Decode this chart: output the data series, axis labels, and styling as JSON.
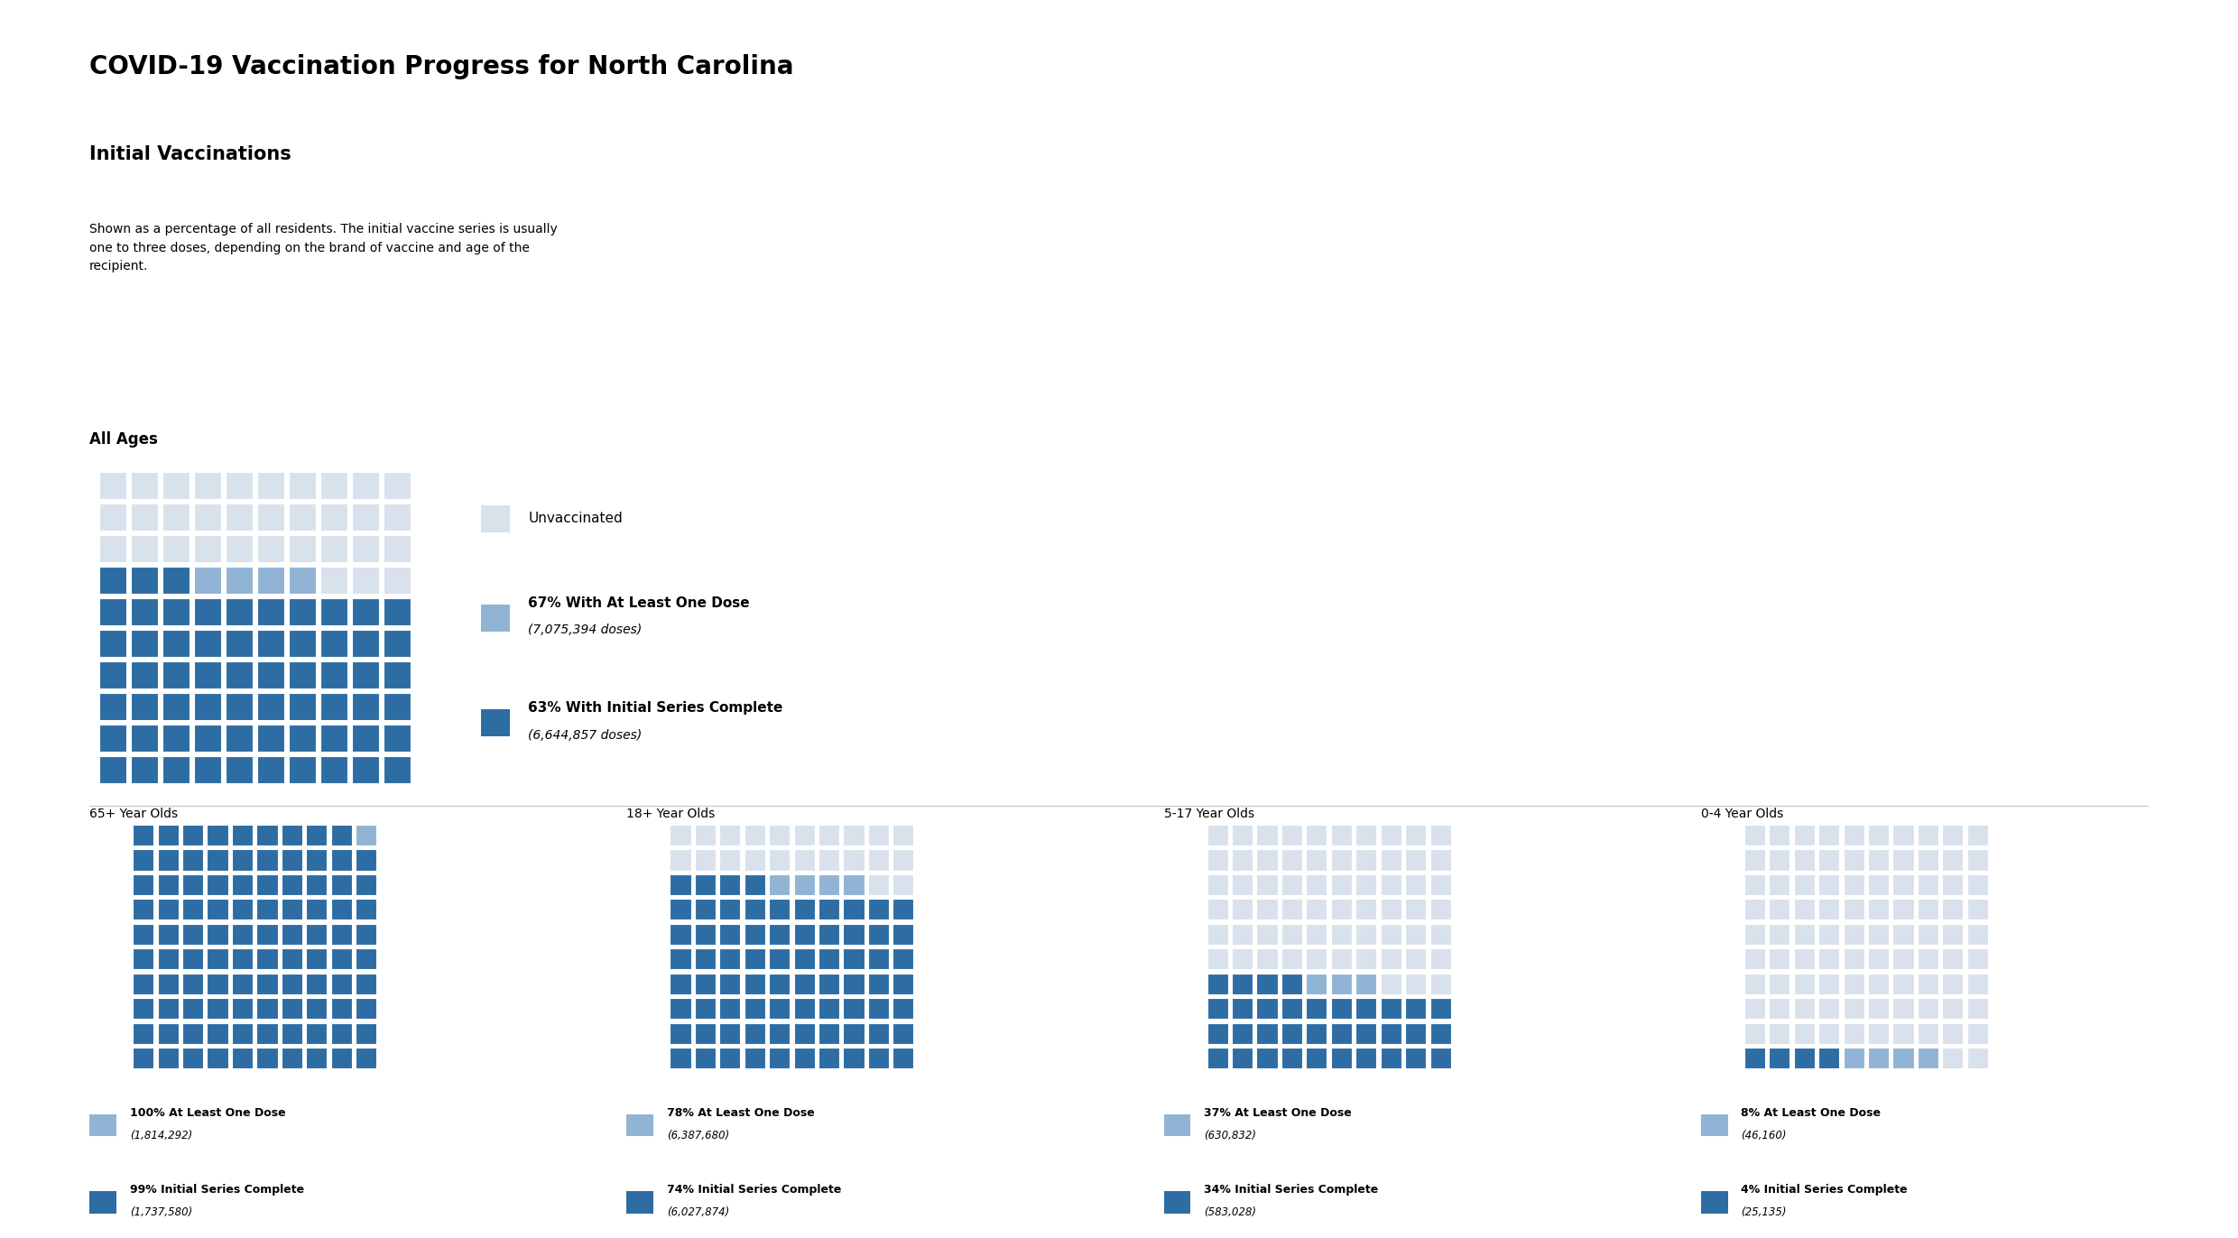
{
  "title": "COVID-19 Vaccination Progress for North Carolina",
  "subtitle": "Initial Vaccinations",
  "description": "Shown as a percentage of all residents. The initial vaccine series is usually\none to three doses, depending on the brand of vaccine and age of the\nrecipient.",
  "color_unvaccinated": "#d9e2ec",
  "color_at_least_one": "#92b4d4",
  "color_series_complete": "#2e6da4",
  "color_grid_line": "#ffffff",
  "background_color": "#ffffff",
  "all_ages": {
    "label": "All Ages",
    "pct_at_least_one": 67,
    "pct_series_complete": 63,
    "legend_at_least_one_line1": "67% With At Least One Dose",
    "legend_at_least_one_line2": "(7,075,394 doses)",
    "legend_series_complete_line1": "63% With Initial Series Complete",
    "legend_series_complete_line2": "(6,644,857 doses)",
    "legend_unvaccinated": "Unvaccinated",
    "cols": 10,
    "rows": 10
  },
  "age_groups": [
    {
      "label": "65+ Year Olds",
      "pct_at_least_one": 100,
      "pct_series_complete": 99,
      "legend_at_least_one_line1": "100% At Least One Dose",
      "legend_at_least_one_line2": "(1,814,292)",
      "legend_series_complete_line1": "99% Initial Series Complete",
      "legend_series_complete_line2": "(1,737,580)",
      "cols": 10,
      "rows": 10
    },
    {
      "label": "18+ Year Olds",
      "pct_at_least_one": 78,
      "pct_series_complete": 74,
      "legend_at_least_one_line1": "78% At Least One Dose",
      "legend_at_least_one_line2": "(6,387,680)",
      "legend_series_complete_line1": "74% Initial Series Complete",
      "legend_series_complete_line2": "(6,027,874)",
      "cols": 10,
      "rows": 10
    },
    {
      "label": "5-17 Year Olds",
      "pct_at_least_one": 37,
      "pct_series_complete": 34,
      "legend_at_least_one_line1": "37% At Least One Dose",
      "legend_at_least_one_line2": "(630,832)",
      "legend_series_complete_line1": "34% Initial Series Complete",
      "legend_series_complete_line2": "(583,028)",
      "cols": 10,
      "rows": 10
    },
    {
      "label": "0-4 Year Olds",
      "pct_at_least_one": 8,
      "pct_series_complete": 4,
      "legend_at_least_one_line1": "8% At Least One Dose",
      "legend_at_least_one_line2": "(46,160)",
      "legend_series_complete_line1": "4% Initial Series Complete",
      "legend_series_complete_line2": "(25,135)",
      "cols": 10,
      "rows": 10
    }
  ]
}
